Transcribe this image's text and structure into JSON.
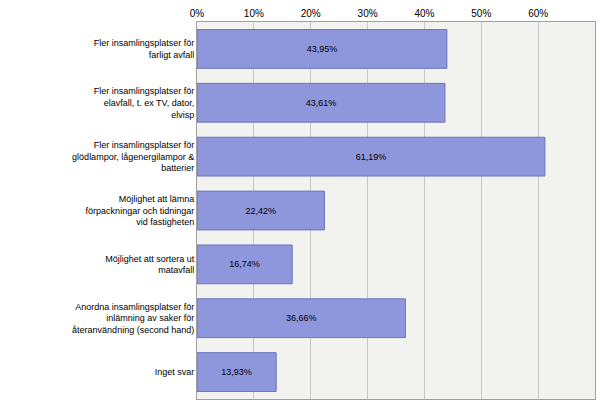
{
  "chart_data": {
    "type": "bar",
    "orientation": "horizontal",
    "categories": [
      "Fler insamlingsplatser för farligt avfall",
      "Fler insamlingsplatser för elavfall, t. ex TV, dator, elvisp",
      "Fler insamlingsplatser för glödlampor, lågenergilampor & batterier",
      "Möjlighet att lämna förpackningar och tidningar vid fastigheten",
      "Möjlighet att sortera ut matavfall",
      "Anordna insamlingsplatser för inlämning av saker för återanvändning (second hand)",
      "Inget svar"
    ],
    "values": [
      43.95,
      43.61,
      61.19,
      22.42,
      16.74,
      36.66,
      13.93
    ],
    "value_labels": [
      "43,95%",
      "43,61%",
      "61,19%",
      "22,42%",
      "16,74%",
      "36,66%",
      "13,93%"
    ],
    "data_labels": true,
    "color": "#8e96dc",
    "xlim": [
      0,
      70
    ],
    "xticks": [
      {
        "value": 0,
        "label": "0%"
      },
      {
        "value": 10,
        "label": "10%"
      },
      {
        "value": 20,
        "label": "20%"
      },
      {
        "value": 30,
        "label": "30%"
      },
      {
        "value": 40,
        "label": "40%"
      },
      {
        "value": 50,
        "label": "50%"
      },
      {
        "value": 60,
        "label": "60%"
      }
    ],
    "grid": true
  }
}
